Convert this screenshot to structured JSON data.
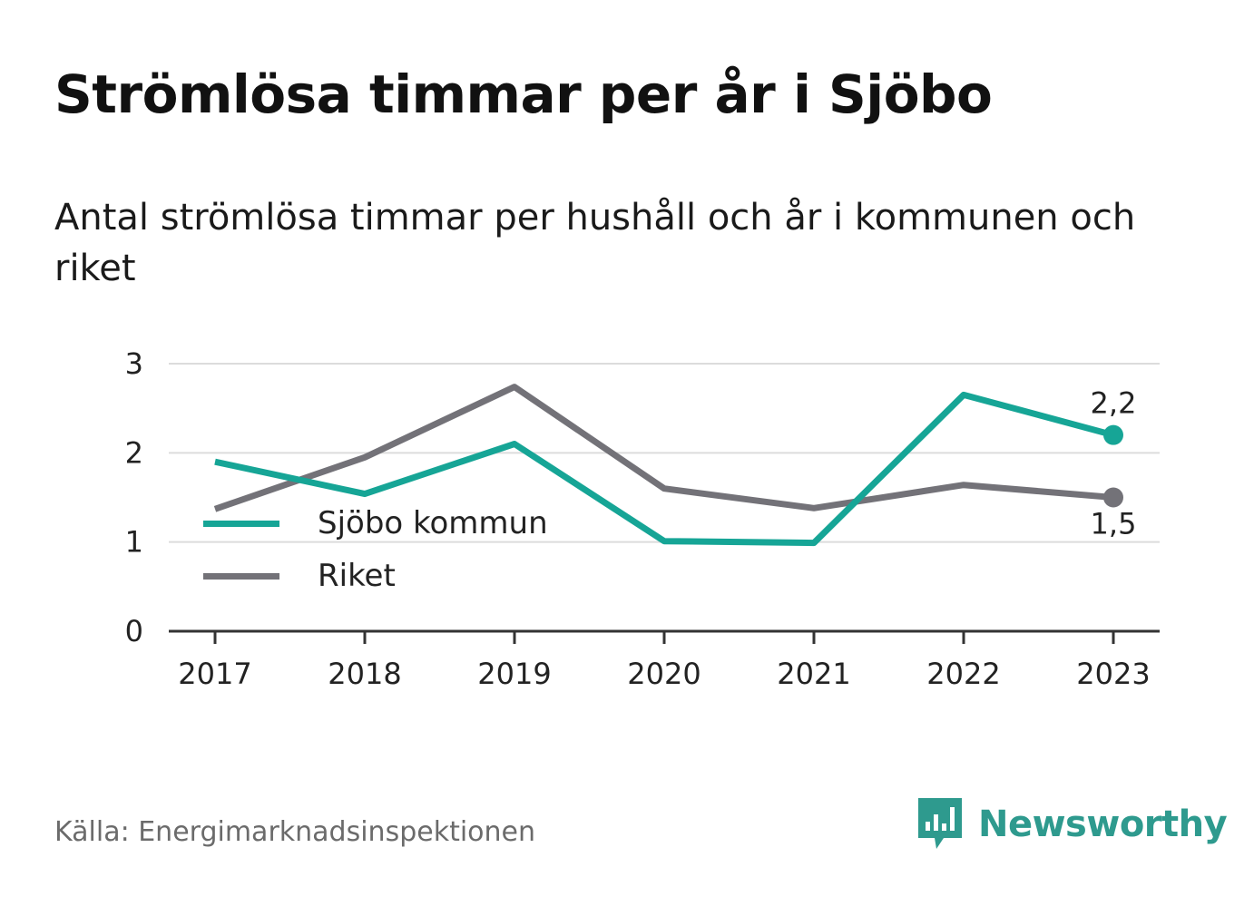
{
  "title": "Strömlösa timmar per år i Sjöbo",
  "subtitle": "Antal strömlösa timmar per hushåll och år i kommunen och riket",
  "source": "Källa: Energimarknadsinspektionen",
  "brand": {
    "name": "Newsworthy",
    "icon": "newsworthy-logo-icon",
    "color": "#2e9a8e"
  },
  "chart_data": {
    "type": "line",
    "categories": [
      "2017",
      "2018",
      "2019",
      "2020",
      "2021",
      "2022",
      "2023"
    ],
    "ylim": [
      0,
      3
    ],
    "yticks": [
      "0",
      "1",
      "2",
      "3"
    ],
    "grid": true,
    "legend_position": "lower-left",
    "series": [
      {
        "name": "Sjöbo kommun",
        "color": "#16a596",
        "values": [
          1.9,
          1.54,
          2.1,
          1.01,
          0.99,
          2.65,
          2.2
        ],
        "end_label": "2,2"
      },
      {
        "name": "Riket",
        "color": "#737278",
        "values": [
          1.37,
          1.95,
          2.74,
          1.6,
          1.38,
          1.64,
          1.5
        ],
        "end_label": "1,5"
      }
    ]
  }
}
